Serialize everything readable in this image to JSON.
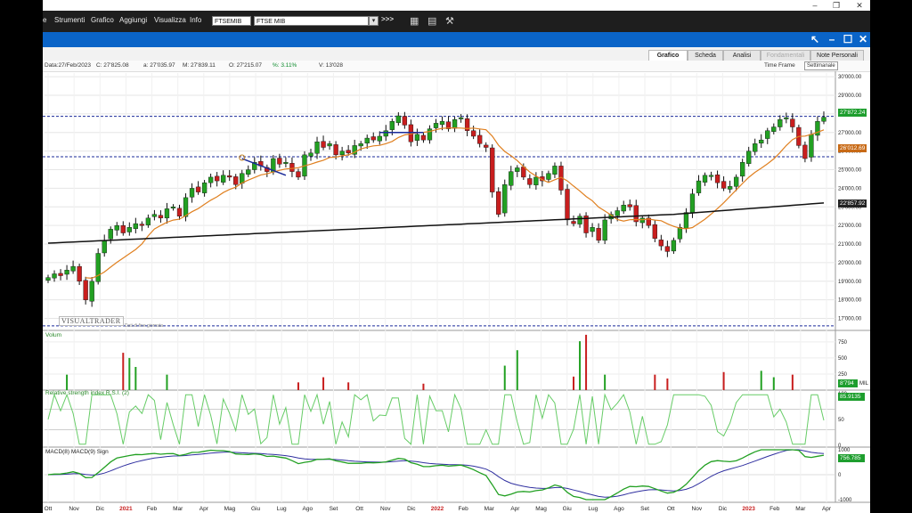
{
  "menu": {
    "items": [
      "Strumenti",
      "Grafico",
      "Aggiungi",
      "Visualizza",
      "Info"
    ],
    "symbol_input": "FTSEMIB",
    "symbol_name": "FTSE MIB",
    "go_label": ">>>",
    "dropdown_label": "▾"
  },
  "tabs": [
    {
      "label": "Grafico",
      "active": true
    },
    {
      "label": "Scheda"
    },
    {
      "label": "Analisi"
    },
    {
      "label": "Fondamentali",
      "disabled": true
    },
    {
      "label": "Note Personali"
    }
  ],
  "info": {
    "date": "Data:27/Feb/2023",
    "close": "C: 27'825.08",
    "open": "a: 27'035.97",
    "high": "M: 27'839.11",
    "low": "O: 27'215.07",
    "pct": "%: 3.11%",
    "volume": "V: 13'028",
    "time_frame_label": "Time Frame",
    "time_frame_value": "Settimanale"
  },
  "watermark": {
    "brand": "VISUALTRADER",
    "note": "Dati di fine giornata"
  },
  "price_tags": {
    "last": "27'872.24",
    "ma_fast": "26'012.69",
    "ma_slow": "22'857.92"
  },
  "panels": {
    "volume_title": "Volum",
    "volume_value": "8'794",
    "volume_unit": "MIL",
    "rsi_title": "Relative strength index R.S.I. (2)",
    "rsi_value": "85.9135",
    "macd_title": "MACD(8)  MACD(9) Sign",
    "macd_value": "756.785"
  },
  "colors": {
    "up": "#22a022",
    "down": "#c81e1e",
    "ma_fast": "#e08020",
    "ma_slow": "#111111",
    "level": "#1a2a9a",
    "rsi": "#66cc66"
  },
  "chart_data": {
    "type": "candlestick",
    "price_axis": {
      "labels": [
        "30'000.00",
        "29'000.00",
        "28'000.00",
        "27'000.00",
        "26'000.00",
        "25'000.00",
        "24'000.00",
        "23'000.00",
        "22'000.00",
        "21'000.00",
        "20'000.00",
        "19'000.00",
        "18'000.00",
        "17'000.00"
      ],
      "min": 16500,
      "max": 30200
    },
    "volume_axis": {
      "labels": [
        "750",
        "500",
        "250"
      ]
    },
    "rsi_axis": {
      "labels": [
        "100",
        "50",
        "0"
      ]
    },
    "macd_axis": {
      "labels": [
        "1000",
        "0",
        "-1000"
      ]
    },
    "x_labels": [
      "Ott",
      "Nov",
      "Dic",
      "2021",
      "Feb",
      "Mar",
      "Apr",
      "Mag",
      "Giu",
      "Lug",
      "Ago",
      "Set",
      "Ott",
      "Nov",
      "Dic",
      "2022",
      "Feb",
      "Mar",
      "Apr",
      "Mag",
      "Giu",
      "Lug",
      "Ago",
      "Set",
      "Ott",
      "Nov",
      "Dic",
      "2023",
      "Feb",
      "Mar",
      "Apr"
    ],
    "bold_x_labels": [
      "2021",
      "2022",
      "2023"
    ],
    "horizontal_levels": [
      27872,
      25700,
      16600
    ],
    "closes": [
      19200,
      19400,
      19300,
      19600,
      19800,
      19000,
      18000,
      19000,
      20500,
      21200,
      21800,
      22000,
      21600,
      21900,
      22100,
      22000,
      22400,
      22600,
      22400,
      22900,
      23000,
      22500,
      23500,
      24000,
      23800,
      24300,
      24600,
      24400,
      24700,
      24600,
      24200,
      24800,
      25000,
      25400,
      25200,
      24900,
      25600,
      25300,
      25400,
      24900,
      24600,
      25800,
      25900,
      26500,
      26200,
      26400,
      25800,
      26000,
      25900,
      26300,
      26400,
      26700,
      26600,
      26800,
      27100,
      27600,
      27900,
      27400,
      26500,
      26900,
      26600,
      27200,
      27500,
      27600,
      27200,
      27700,
      27800,
      27100,
      26800,
      26400,
      26200,
      23800,
      22600,
      24200,
      24900,
      25100,
      24600,
      24200,
      24600,
      24400,
      24800,
      25200,
      23900,
      22300,
      22100,
      22500,
      21600,
      21900,
      21200,
      22300,
      22600,
      22800,
      23100,
      23000,
      22200,
      22400,
      22000,
      21300,
      20900,
      20600,
      21200,
      21900,
      22700,
      23700,
      24400,
      24700,
      24700,
      24300,
      24000,
      24100,
      24600,
      25400,
      26000,
      26400,
      26600,
      27100,
      27300,
      27700,
      27800,
      27300,
      26300,
      25600,
      26900,
      27600,
      27825
    ]
  }
}
